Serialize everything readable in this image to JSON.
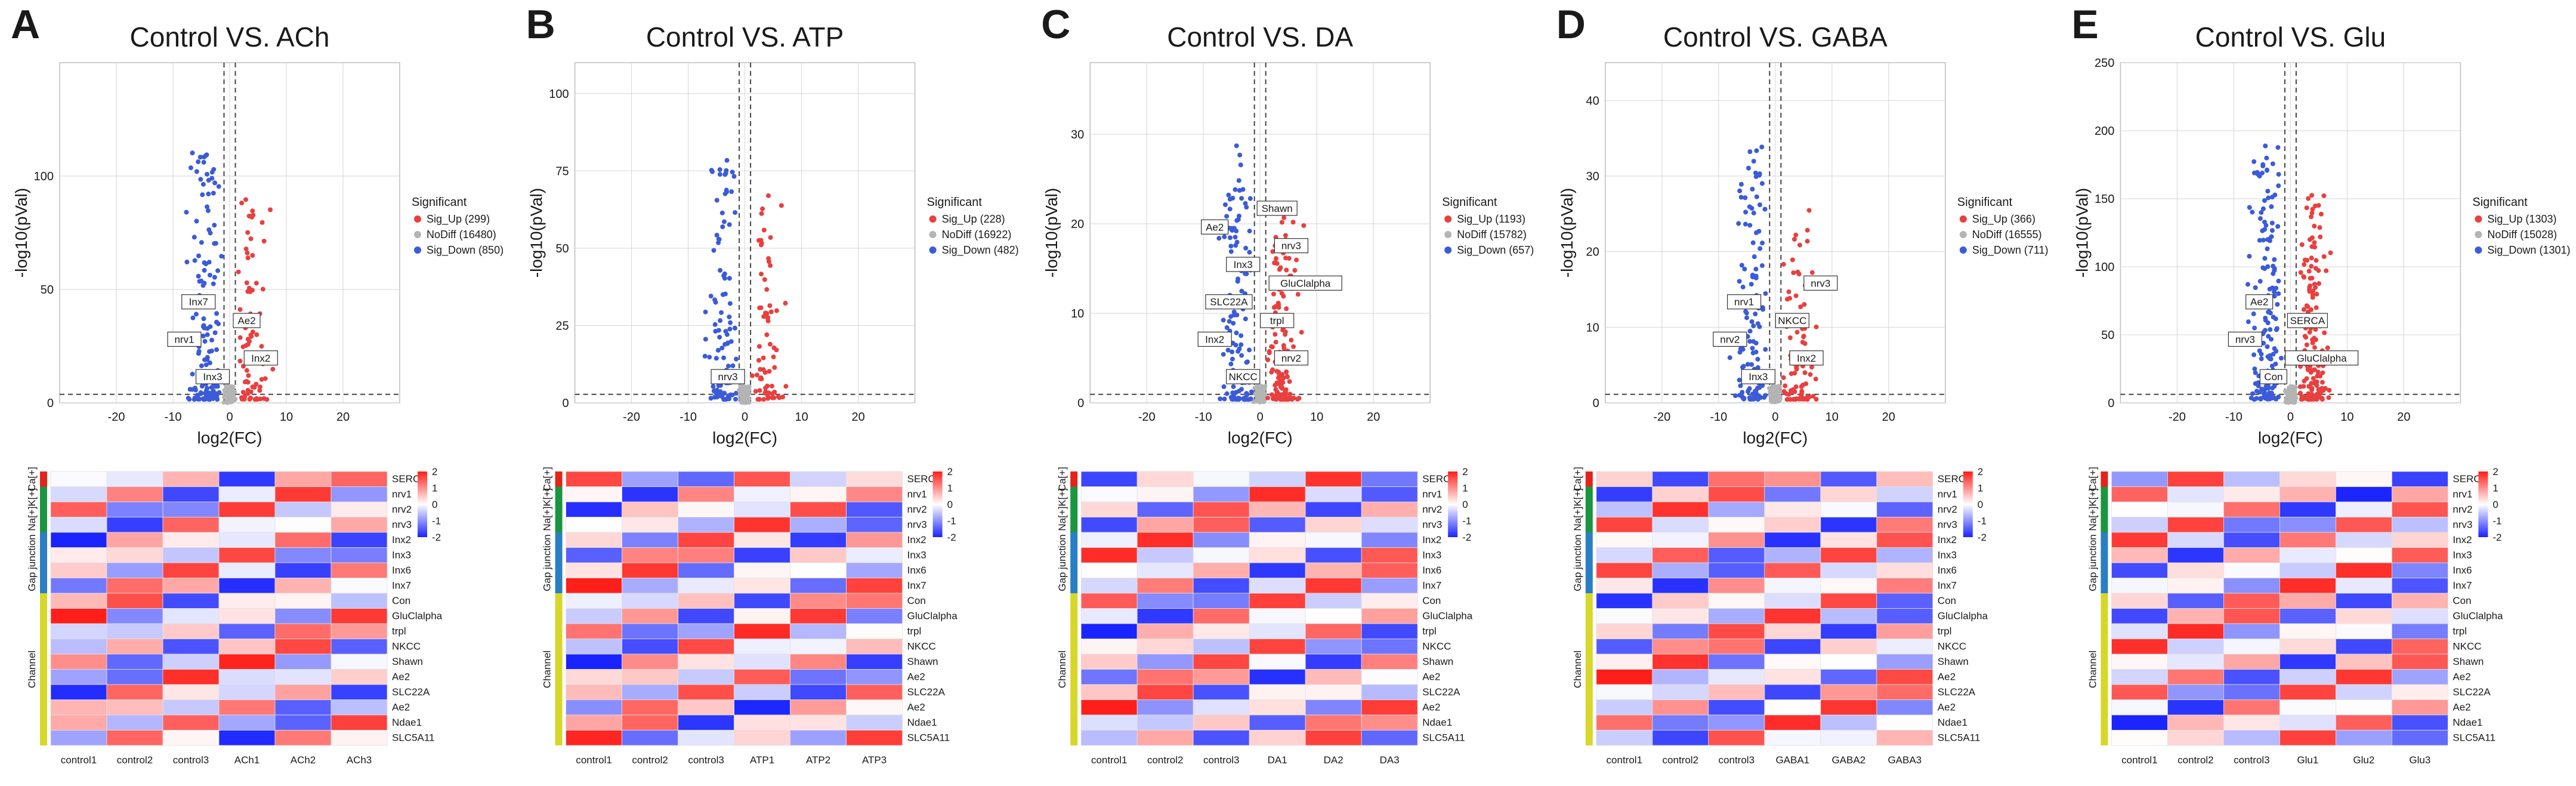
{
  "colors": {
    "up": "#e8403f",
    "nodiff": "#b4b4b4",
    "down": "#3b5bd9",
    "grid": "#d6d6d6"
  },
  "legend": {
    "title": "Significant",
    "up": "Sig_Up",
    "nodiff": "NoDiff",
    "down": "Sig_Down"
  },
  "xaxis_label": "log2(FC)",
  "yaxis_label": "-log10(pVal)",
  "panels": [
    {
      "letter": "A",
      "title": "Control VS. ACh",
      "xlim": [
        -30,
        30
      ],
      "xticks": [
        -20,
        -10,
        0,
        10,
        20
      ],
      "ylim": [
        0,
        150
      ],
      "yticks": [
        0,
        50,
        100
      ],
      "counts": {
        "up": 299,
        "nodiff": 16480,
        "down": 850
      },
      "genes": [
        "Inx3",
        "Inx2",
        "nrv1",
        "Ae2",
        "Inx7"
      ],
      "samples": [
        "control1",
        "control2",
        "control3",
        "ACh1",
        "ACh2",
        "ACh3"
      ]
    },
    {
      "letter": "B",
      "title": "Control VS. ATP",
      "xlim": [
        -30,
        30
      ],
      "xticks": [
        -20,
        -10,
        0,
        10,
        20
      ],
      "ylim": [
        0,
        110
      ],
      "yticks": [
        0,
        25,
        50,
        75,
        100
      ],
      "counts": {
        "up": 228,
        "nodiff": 16922,
        "down": 482
      },
      "genes": [
        "nrv3"
      ],
      "samples": [
        "control1",
        "control2",
        "control3",
        "ATP1",
        "ATP2",
        "ATP3"
      ]
    },
    {
      "letter": "C",
      "title": "Control VS. DA",
      "xlim": [
        -30,
        30
      ],
      "xticks": [
        -20,
        -10,
        0,
        10,
        20
      ],
      "ylim": [
        0,
        38
      ],
      "yticks": [
        0,
        10,
        20,
        30
      ],
      "counts": {
        "up": 1193,
        "nodiff": 15782,
        "down": 657
      },
      "genes": [
        "NKCC",
        "nrv2",
        "Inx2",
        "trpl",
        "SLC22A",
        "GluClalpha",
        "Inx3",
        "nrv3",
        "Ae2",
        "Shawn"
      ],
      "samples": [
        "control1",
        "control2",
        "control3",
        "DA1",
        "DA2",
        "DA3"
      ]
    },
    {
      "letter": "D",
      "title": "Control VS. GABA",
      "xlim": [
        -30,
        30
      ],
      "xticks": [
        -20,
        -10,
        0,
        10,
        20
      ],
      "ylim": [
        0,
        45
      ],
      "yticks": [
        0,
        10,
        20,
        30,
        40
      ],
      "counts": {
        "up": 366,
        "nodiff": 16555,
        "down": 711
      },
      "genes": [
        "Inx3",
        "Inx2",
        "nrv2",
        "NKCC",
        "nrv1",
        "nrv3"
      ],
      "samples": [
        "control1",
        "control2",
        "control3",
        "GABA1",
        "GABA2",
        "GABA3"
      ]
    },
    {
      "letter": "E",
      "title": "Control VS. Glu",
      "xlim": [
        -30,
        30
      ],
      "xticks": [
        -20,
        -10,
        0,
        10,
        20
      ],
      "ylim": [
        0,
        250
      ],
      "yticks": [
        0,
        50,
        100,
        150,
        200,
        250
      ],
      "counts": {
        "up": 1303,
        "nodiff": 15028,
        "down": 1301
      },
      "genes": [
        "Con",
        "GluClalpha",
        "nrv3",
        "SERCA",
        "Ae2"
      ],
      "samples": [
        "control1",
        "control2",
        "control3",
        "Glu1",
        "Glu2",
        "Glu3"
      ]
    }
  ],
  "heatmap": {
    "rows": [
      "SERCA",
      "nrv1",
      "nrv2",
      "nrv3",
      "Inx2",
      "Inx3",
      "Inx6",
      "Inx7",
      "Con",
      "GluClalpha",
      "trpl",
      "NKCC",
      "Shawn",
      "Ae2",
      "SLC22A",
      "Ae2",
      "Ndae1",
      "SLC5A11"
    ],
    "groups": [
      {
        "label": "Ca[+]",
        "count": 1,
        "color": "#e3241b"
      },
      {
        "label": "Na[+]K[+]",
        "count": 3,
        "color": "#1a9641"
      },
      {
        "label": "Gap junction",
        "count": 4,
        "color": "#2a7fc4"
      },
      {
        "label": "Channel",
        "count": 10,
        "color": "#d7d72a"
      }
    ],
    "scale": {
      "max": 2,
      "mid": 0,
      "min": -2,
      "ticks": [
        "2",
        "1",
        "0",
        "-1",
        "-2"
      ]
    }
  },
  "chart_data": [
    {
      "type": "scatter",
      "title": "Control VS. ACh",
      "xlabel": "log2(FC)",
      "ylabel": "-log10(pVal)",
      "series": [
        {
          "name": "Sig_Up",
          "count": 299
        },
        {
          "name": "NoDiff",
          "count": 16480
        },
        {
          "name": "Sig_Down",
          "count": 850
        }
      ]
    },
    {
      "type": "scatter",
      "title": "Control VS. ATP",
      "xlabel": "log2(FC)",
      "ylabel": "-log10(pVal)",
      "series": [
        {
          "name": "Sig_Up",
          "count": 228
        },
        {
          "name": "NoDiff",
          "count": 16922
        },
        {
          "name": "Sig_Down",
          "count": 482
        }
      ]
    },
    {
      "type": "scatter",
      "title": "Control VS. DA",
      "xlabel": "log2(FC)",
      "ylabel": "-log10(pVal)",
      "series": [
        {
          "name": "Sig_Up",
          "count": 1193
        },
        {
          "name": "NoDiff",
          "count": 15782
        },
        {
          "name": "Sig_Down",
          "count": 657
        }
      ]
    },
    {
      "type": "scatter",
      "title": "Control VS. GABA",
      "xlabel": "log2(FC)",
      "ylabel": "-log10(pVal)",
      "series": [
        {
          "name": "Sig_Up",
          "count": 366
        },
        {
          "name": "NoDiff",
          "count": 16555
        },
        {
          "name": "Sig_Down",
          "count": 711
        }
      ]
    },
    {
      "type": "scatter",
      "title": "Control VS. Glu",
      "xlabel": "log2(FC)",
      "ylabel": "-log10(pVal)",
      "series": [
        {
          "name": "Sig_Up",
          "count": 1303
        },
        {
          "name": "NoDiff",
          "count": 15028
        },
        {
          "name": "Sig_Down",
          "count": 1301
        }
      ]
    }
  ]
}
